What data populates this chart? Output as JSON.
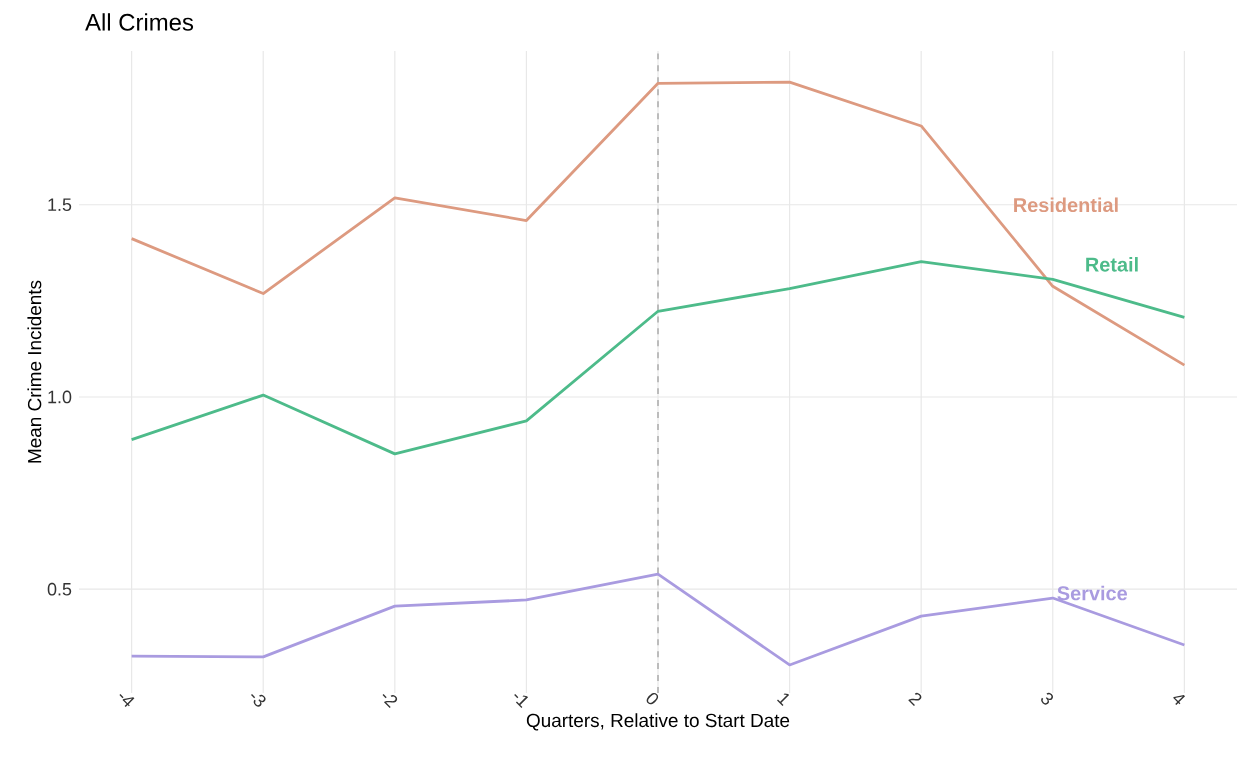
{
  "chart_data": {
    "type": "line",
    "title": "All Crimes",
    "xlabel": "Quarters, Relative to Start Date",
    "ylabel": "Mean Crime Incidents",
    "x": [
      -4,
      -3,
      -2,
      -1,
      0,
      1,
      2,
      3,
      4
    ],
    "series": [
      {
        "name": "Residential",
        "color": "#dd9a80",
        "values": [
          1.412,
          1.269,
          1.518,
          1.459,
          1.816,
          1.819,
          1.705,
          1.288,
          1.083
        ]
      },
      {
        "name": "Retail",
        "color": "#4dbb8a",
        "values": [
          0.889,
          1.005,
          0.852,
          0.938,
          1.223,
          1.282,
          1.352,
          1.306,
          1.207
        ]
      },
      {
        "name": "Service",
        "color": "#a99be0",
        "values": [
          0.326,
          0.324,
          0.456,
          0.472,
          0.539,
          0.303,
          0.43,
          0.477,
          0.355
        ]
      }
    ],
    "xlim": [
      -4.4,
      4.4
    ],
    "ylim": [
      0.23,
      1.9
    ],
    "xticks": [
      -4,
      -3,
      -2,
      -1,
      0,
      1,
      2,
      3,
      4
    ],
    "yticks": [
      0.5,
      {
        "value": 1,
        "label": "1.0"
      },
      1.5
    ],
    "ref_lines": [
      {
        "axis": "x",
        "value": 0,
        "color": "#999999",
        "line_style": "dashed"
      }
    ],
    "grid": true,
    "legend": false,
    "line_style": "solid",
    "marker": "none"
  }
}
